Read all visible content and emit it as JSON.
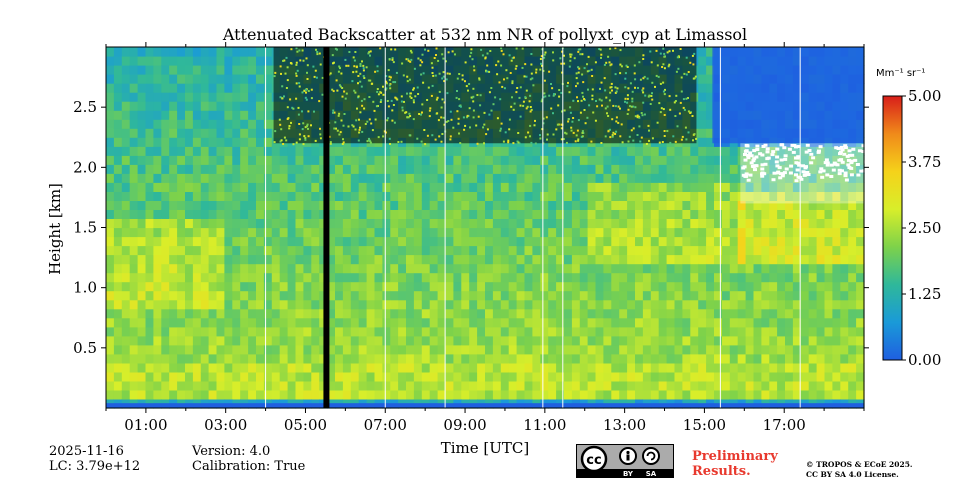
{
  "chart_data": {
    "type": "heatmap",
    "title": "Attenuated Backscatter at 532 nm NR of pollyxt_cyp at Limassol",
    "xlabel": "Time [UTC]",
    "ylabel": "Height [km]",
    "x_range_hours": [
      0,
      19
    ],
    "y_range_km": [
      0,
      3.0
    ],
    "x_ticks": [
      "01:00",
      "03:00",
      "05:00",
      "07:00",
      "09:00",
      "11:00",
      "13:00",
      "15:00",
      "17:00"
    ],
    "x_tick_hours": [
      1,
      3,
      5,
      7,
      9,
      11,
      13,
      15,
      17
    ],
    "y_ticks": [
      "0.5",
      "1.0",
      "1.5",
      "2.0",
      "2.5"
    ],
    "y_tick_values": [
      0.5,
      1.0,
      1.5,
      2.0,
      2.5
    ],
    "colorbar": {
      "label": "Mm⁻¹ sr⁻¹",
      "range": [
        0,
        5
      ],
      "ticks": [
        "0.00",
        "1.25",
        "2.50",
        "3.75",
        "5.00"
      ],
      "tick_values": [
        0,
        1.25,
        2.5,
        3.75,
        5.0
      ],
      "colormap": [
        "#1f5fe0",
        "#1a9ad8",
        "#2fb89a",
        "#7ed24a",
        "#d8ee2a",
        "#f5d21a",
        "#f08a1a",
        "#d81e1a"
      ]
    },
    "no_data_intervals_hours": [
      [
        5.45,
        5.6
      ]
    ],
    "low_signal_region": {
      "hours": [
        4.2,
        14.8
      ],
      "above_km": 2.2
    },
    "cloud_region": {
      "hours": [
        15.9,
        19.0
      ],
      "heights_km": [
        1.7,
        2.2
      ]
    },
    "profile_breaks_hours": [
      4.0,
      7.0,
      8.5,
      10.95,
      11.45,
      15.4,
      17.4
    ]
  },
  "footer": {
    "date": "2025-11-16",
    "lc": "LC: 3.79e+12",
    "version": "Version: 4.0",
    "calibration": "Calibration: True",
    "license_cc": "cc",
    "license_by": "BY",
    "license_sa": "SA",
    "preliminary_1": "Preliminary",
    "preliminary_2": "Results.",
    "copyright_1": "© TROPOS & ECoE 2025.",
    "copyright_2": "CC BY SA 4.0 License."
  }
}
